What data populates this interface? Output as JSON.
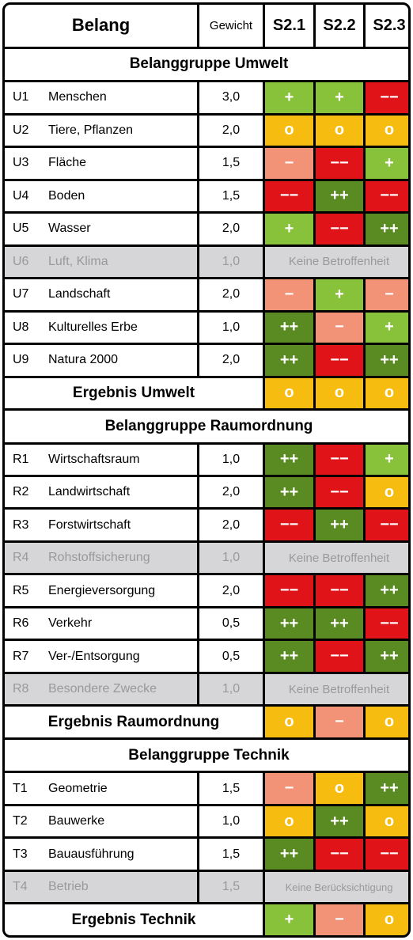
{
  "header": {
    "belang": "Belang",
    "gewicht": "Gewicht",
    "scenarios": [
      "S2.1",
      "S2.2",
      "S2.3"
    ]
  },
  "colors": {
    "++": "#5a8a22",
    "+": "#88c23a",
    "o": "#f7bc10",
    "−": "#f29277",
    "−−": "#e01319",
    "grey": "#d6d6d8"
  },
  "sections": [
    {
      "group": "Belanggruppe Umwelt",
      "rows": [
        {
          "code": "U1",
          "name": "Menschen",
          "weight": "3,0",
          "scores": [
            "+",
            "+",
            "−−"
          ]
        },
        {
          "code": "U2",
          "name": "Tiere, Pflanzen",
          "weight": "2,0",
          "scores": [
            "o",
            "o",
            "o"
          ]
        },
        {
          "code": "U3",
          "name": "Fläche",
          "weight": "1,5",
          "scores": [
            "−",
            "−−",
            "+"
          ]
        },
        {
          "code": "U4",
          "name": "Boden",
          "weight": "1,5",
          "scores": [
            "−−",
            "++",
            "−−"
          ]
        },
        {
          "code": "U5",
          "name": "Wasser",
          "weight": "2,0",
          "scores": [
            "+",
            "−−",
            "++"
          ]
        },
        {
          "code": "U6",
          "name": "Luft, Klima",
          "weight": "1,0",
          "na": "Keine Betroffenheit"
        },
        {
          "code": "U7",
          "name": "Landschaft",
          "weight": "2,0",
          "scores": [
            "−",
            "+",
            "−"
          ]
        },
        {
          "code": "U8",
          "name": "Kulturelles Erbe",
          "weight": "1,0",
          "scores": [
            "++",
            "−",
            "+"
          ]
        },
        {
          "code": "U9",
          "name": "Natura 2000",
          "weight": "2,0",
          "scores": [
            "++",
            "−−",
            "++"
          ]
        }
      ],
      "result": {
        "label": "Ergebnis Umwelt",
        "scores": [
          "o",
          "o",
          "o"
        ]
      }
    },
    {
      "group": "Belanggruppe Raumordnung",
      "rows": [
        {
          "code": "R1",
          "name": "Wirtschaftsraum",
          "weight": "1,0",
          "scores": [
            "++",
            "−−",
            "+"
          ]
        },
        {
          "code": "R2",
          "name": "Landwirtschaft",
          "weight": "2,0",
          "scores": [
            "++",
            "−−",
            "o"
          ]
        },
        {
          "code": "R3",
          "name": "Forstwirtschaft",
          "weight": "2,0",
          "scores": [
            "−−",
            "++",
            "−−"
          ]
        },
        {
          "code": "R4",
          "name": "Rohstoffsicherung",
          "weight": "1,0",
          "na": "Keine Betroffenheit"
        },
        {
          "code": "R5",
          "name": "Energieversorgung",
          "weight": "2,0",
          "scores": [
            "−−",
            "−−",
            "++"
          ]
        },
        {
          "code": "R6",
          "name": "Verkehr",
          "weight": "0,5",
          "scores": [
            "++",
            "++",
            "−−"
          ]
        },
        {
          "code": "R7",
          "name": "Ver-/Entsorgung",
          "weight": "0,5",
          "scores": [
            "++",
            "−−",
            "++"
          ]
        },
        {
          "code": "R8",
          "name": "Besondere Zwecke",
          "weight": "1,0",
          "na": "Keine Betroffenheit"
        }
      ],
      "result": {
        "label": "Ergebnis Raumordnung",
        "scores": [
          "o",
          "−",
          "o"
        ]
      }
    },
    {
      "group": "Belanggruppe Technik",
      "rows": [
        {
          "code": "T1",
          "name": "Geometrie",
          "weight": "1,5",
          "scores": [
            "−",
            "o",
            "++"
          ]
        },
        {
          "code": "T2",
          "name": "Bauwerke",
          "weight": "1,0",
          "scores": [
            "o",
            "++",
            "o"
          ]
        },
        {
          "code": "T3",
          "name": "Bauausführung",
          "weight": "1,5",
          "scores": [
            "++",
            "−−",
            "−−"
          ]
        },
        {
          "code": "T4",
          "name": "Betrieb",
          "weight": "1,5",
          "na": "Keine Berücksichtigung"
        }
      ],
      "result": {
        "label": "Ergebnis Technik",
        "scores": [
          "+",
          "−",
          "o"
        ]
      }
    }
  ]
}
